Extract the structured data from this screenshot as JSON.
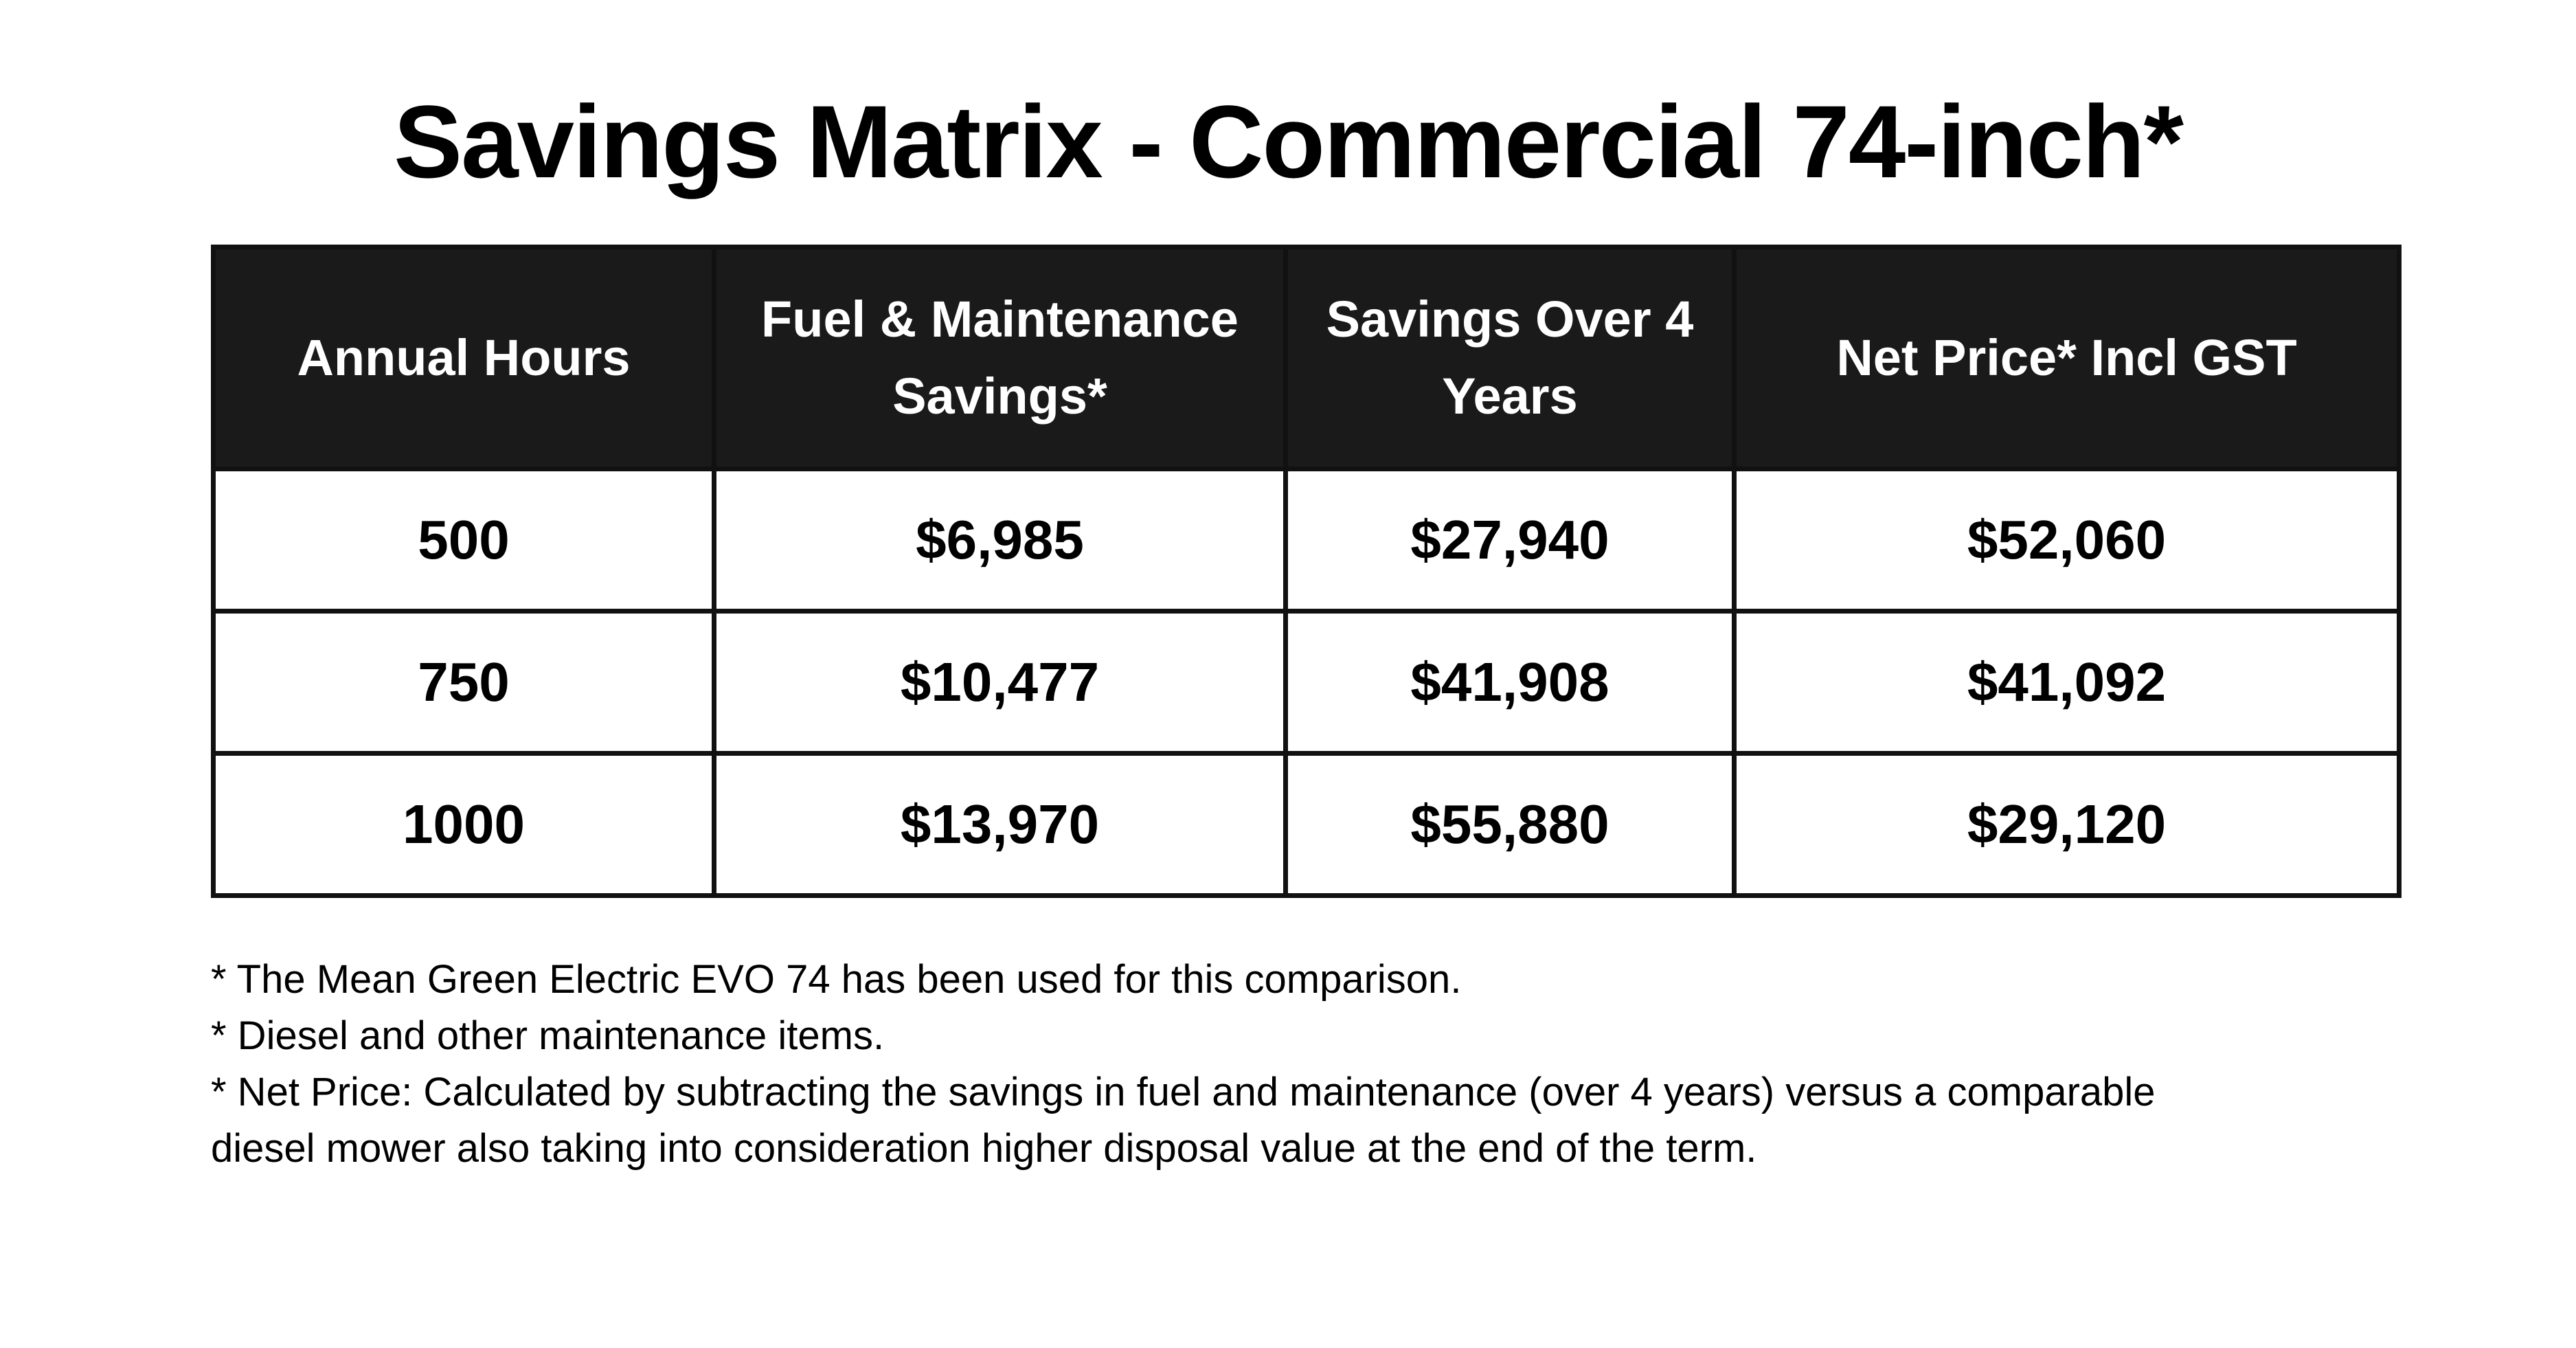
{
  "title": "Savings Matrix - Commercial 74-inch*",
  "table": {
    "header": [
      "Annual Hours",
      "Fuel & Maintenance Savings*",
      "Savings Over 4 Years",
      "Net Price* Incl GST"
    ],
    "rows": [
      [
        "500",
        "$6,985",
        "$27,940",
        "$52,060"
      ],
      [
        "750",
        "$10,477",
        "$41,908",
        "$41,092"
      ],
      [
        "1000",
        "$13,970",
        "$55,880",
        "$29,120"
      ]
    ]
  },
  "notes": [
    "* The Mean Green Electric EVO 74 has been used for this comparison.",
    "* Diesel and other maintenance items.",
    "* Net Price: Calculated by subtracting the savings in fuel and maintenance (over 4 years) versus a comparable diesel mower also taking into consideration higher disposal value at the end of the term."
  ]
}
